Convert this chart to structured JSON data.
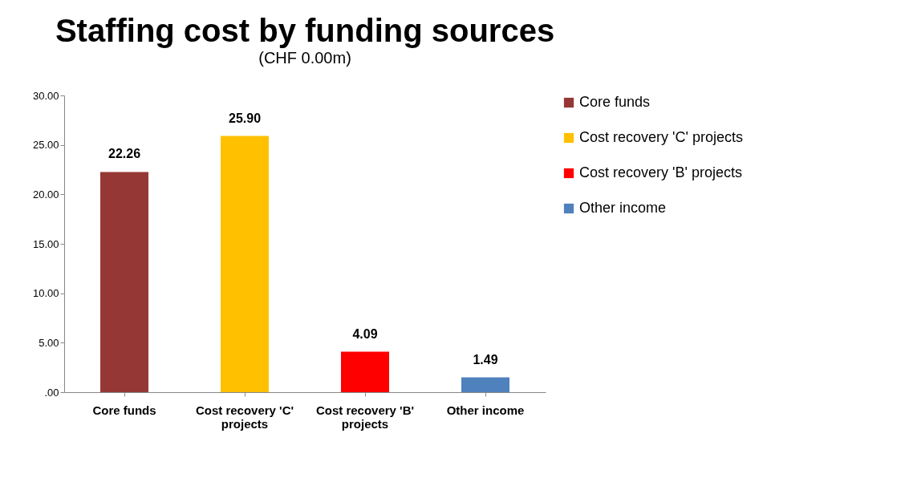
{
  "chart_data": {
    "type": "bar",
    "title": "Staffing cost by funding sources",
    "subtitle": "(CHF 0.00m)",
    "categories": [
      "Core funds",
      "Cost recovery 'C' projects",
      "Cost recovery 'B' projects",
      "Other income"
    ],
    "series": [
      {
        "name": "Core funds",
        "color": "#953735",
        "values": [
          22.26,
          null,
          null,
          null
        ],
        "value_labels": [
          "22.26",
          null,
          null,
          null
        ]
      },
      {
        "name": "Cost recovery 'C' projects",
        "color": "#ffc000",
        "values": [
          null,
          25.9,
          null,
          null
        ],
        "value_labels": [
          null,
          "25.90",
          null,
          null
        ]
      },
      {
        "name": "Cost recovery 'B' projects",
        "color": "#ff0000",
        "values": [
          null,
          null,
          4.09,
          null
        ],
        "value_labels": [
          null,
          null,
          "4.09",
          null
        ]
      },
      {
        "name": "Other income",
        "color": "#4f81bd",
        "values": [
          null,
          null,
          null,
          1.49
        ],
        "value_labels": [
          null,
          null,
          null,
          "1.49"
        ]
      }
    ],
    "ylim": [
      0,
      30
    ],
    "yticks": [
      {
        "value": 0,
        "label": ".00"
      },
      {
        "value": 5,
        "label": "5.00"
      },
      {
        "value": 10,
        "label": "10.00"
      },
      {
        "value": 15,
        "label": "15.00"
      },
      {
        "value": 20,
        "label": "20.00"
      },
      {
        "value": 25,
        "label": "25.00"
      },
      {
        "value": 30,
        "label": "30.00"
      }
    ],
    "legend": "right",
    "grid": false
  }
}
